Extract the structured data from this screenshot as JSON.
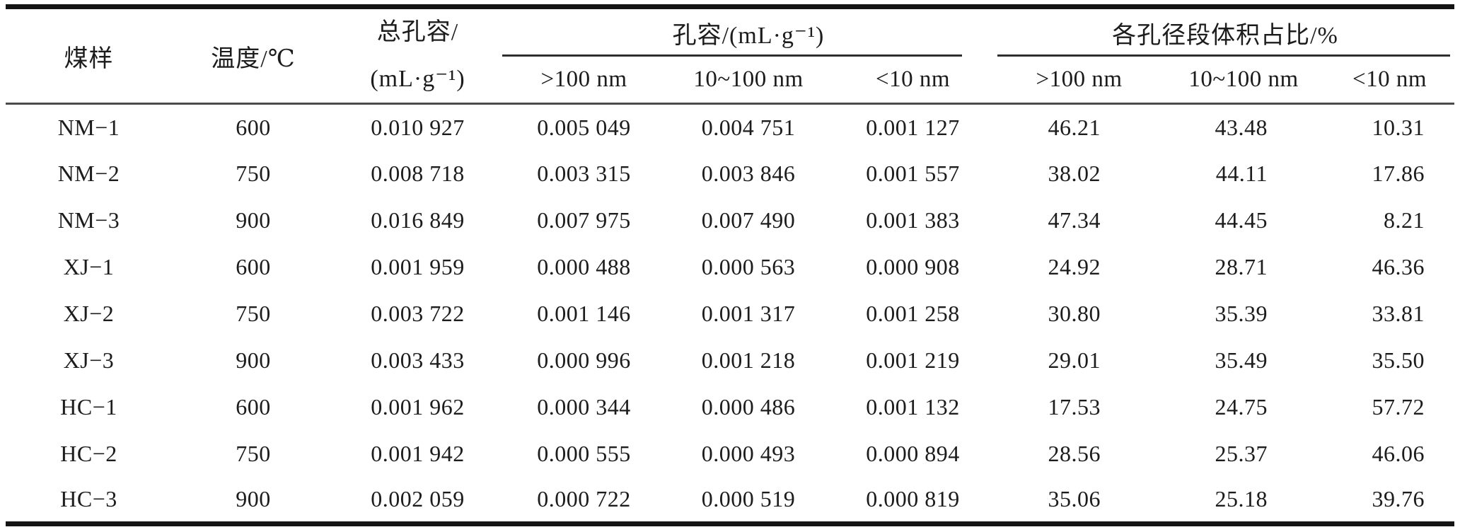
{
  "table": {
    "header": {
      "sample": "煤样",
      "temperature": "温度/℃",
      "total_pore_volume_lines": [
        "总孔容/",
        "(mL·g⁻¹)"
      ],
      "groups": [
        {
          "label": "孔容/(mL·g⁻¹)",
          "subcolumns": [
            ">100 nm",
            "10~100 nm",
            "<10 nm"
          ]
        },
        {
          "label": "各孔径段体积占比/%",
          "subcolumns": [
            ">100 nm",
            "10~100 nm",
            "<10 nm"
          ]
        }
      ]
    },
    "rows": [
      {
        "sample": "NM−1",
        "temperature": "600",
        "total_pore_volume": "0.010 927",
        "pv_gt100nm": "0.005 049",
        "pv_10_100nm": "0.004 751",
        "pv_lt10nm": "0.001 127",
        "pct_gt100nm": "46.21",
        "pct_10_100nm": "43.48",
        "pct_lt10nm": "10.31"
      },
      {
        "sample": "NM−2",
        "temperature": "750",
        "total_pore_volume": "0.008 718",
        "pv_gt100nm": "0.003 315",
        "pv_10_100nm": "0.003 846",
        "pv_lt10nm": "0.001 557",
        "pct_gt100nm": "38.02",
        "pct_10_100nm": "44.11",
        "pct_lt10nm": "17.86"
      },
      {
        "sample": "NM−3",
        "temperature": "900",
        "total_pore_volume": "0.016 849",
        "pv_gt100nm": "0.007 975",
        "pv_10_100nm": "0.007 490",
        "pv_lt10nm": "0.001 383",
        "pct_gt100nm": "47.34",
        "pct_10_100nm": "44.45",
        "pct_lt10nm": "8.21"
      },
      {
        "sample": "XJ−1",
        "temperature": "600",
        "total_pore_volume": "0.001 959",
        "pv_gt100nm": "0.000 488",
        "pv_10_100nm": "0.000 563",
        "pv_lt10nm": "0.000 908",
        "pct_gt100nm": "24.92",
        "pct_10_100nm": "28.71",
        "pct_lt10nm": "46.36"
      },
      {
        "sample": "XJ−2",
        "temperature": "750",
        "total_pore_volume": "0.003 722",
        "pv_gt100nm": "0.001 146",
        "pv_10_100nm": "0.001 317",
        "pv_lt10nm": "0.001 258",
        "pct_gt100nm": "30.80",
        "pct_10_100nm": "35.39",
        "pct_lt10nm": "33.81"
      },
      {
        "sample": "XJ−3",
        "temperature": "900",
        "total_pore_volume": "0.003 433",
        "pv_gt100nm": "0.000 996",
        "pv_10_100nm": "0.001 218",
        "pv_lt10nm": "0.001 219",
        "pct_gt100nm": "29.01",
        "pct_10_100nm": "35.49",
        "pct_lt10nm": "35.50"
      },
      {
        "sample": "HC−1",
        "temperature": "600",
        "total_pore_volume": "0.001 962",
        "pv_gt100nm": "0.000 344",
        "pv_10_100nm": "0.000 486",
        "pv_lt10nm": "0.001 132",
        "pct_gt100nm": "17.53",
        "pct_10_100nm": "24.75",
        "pct_lt10nm": "57.72"
      },
      {
        "sample": "HC−2",
        "temperature": "750",
        "total_pore_volume": "0.001 942",
        "pv_gt100nm": "0.000 555",
        "pv_10_100nm": "0.000 493",
        "pv_lt10nm": "0.000 894",
        "pct_gt100nm": "28.56",
        "pct_10_100nm": "25.37",
        "pct_lt10nm": "46.06"
      },
      {
        "sample": "HC−3",
        "temperature": "900",
        "total_pore_volume": "0.002 059",
        "pv_gt100nm": "0.000 722",
        "pv_10_100nm": "0.000 519",
        "pv_lt10nm": "0.000 819",
        "pct_gt100nm": "35.06",
        "pct_10_100nm": "25.18",
        "pct_lt10nm": "39.76"
      }
    ]
  }
}
